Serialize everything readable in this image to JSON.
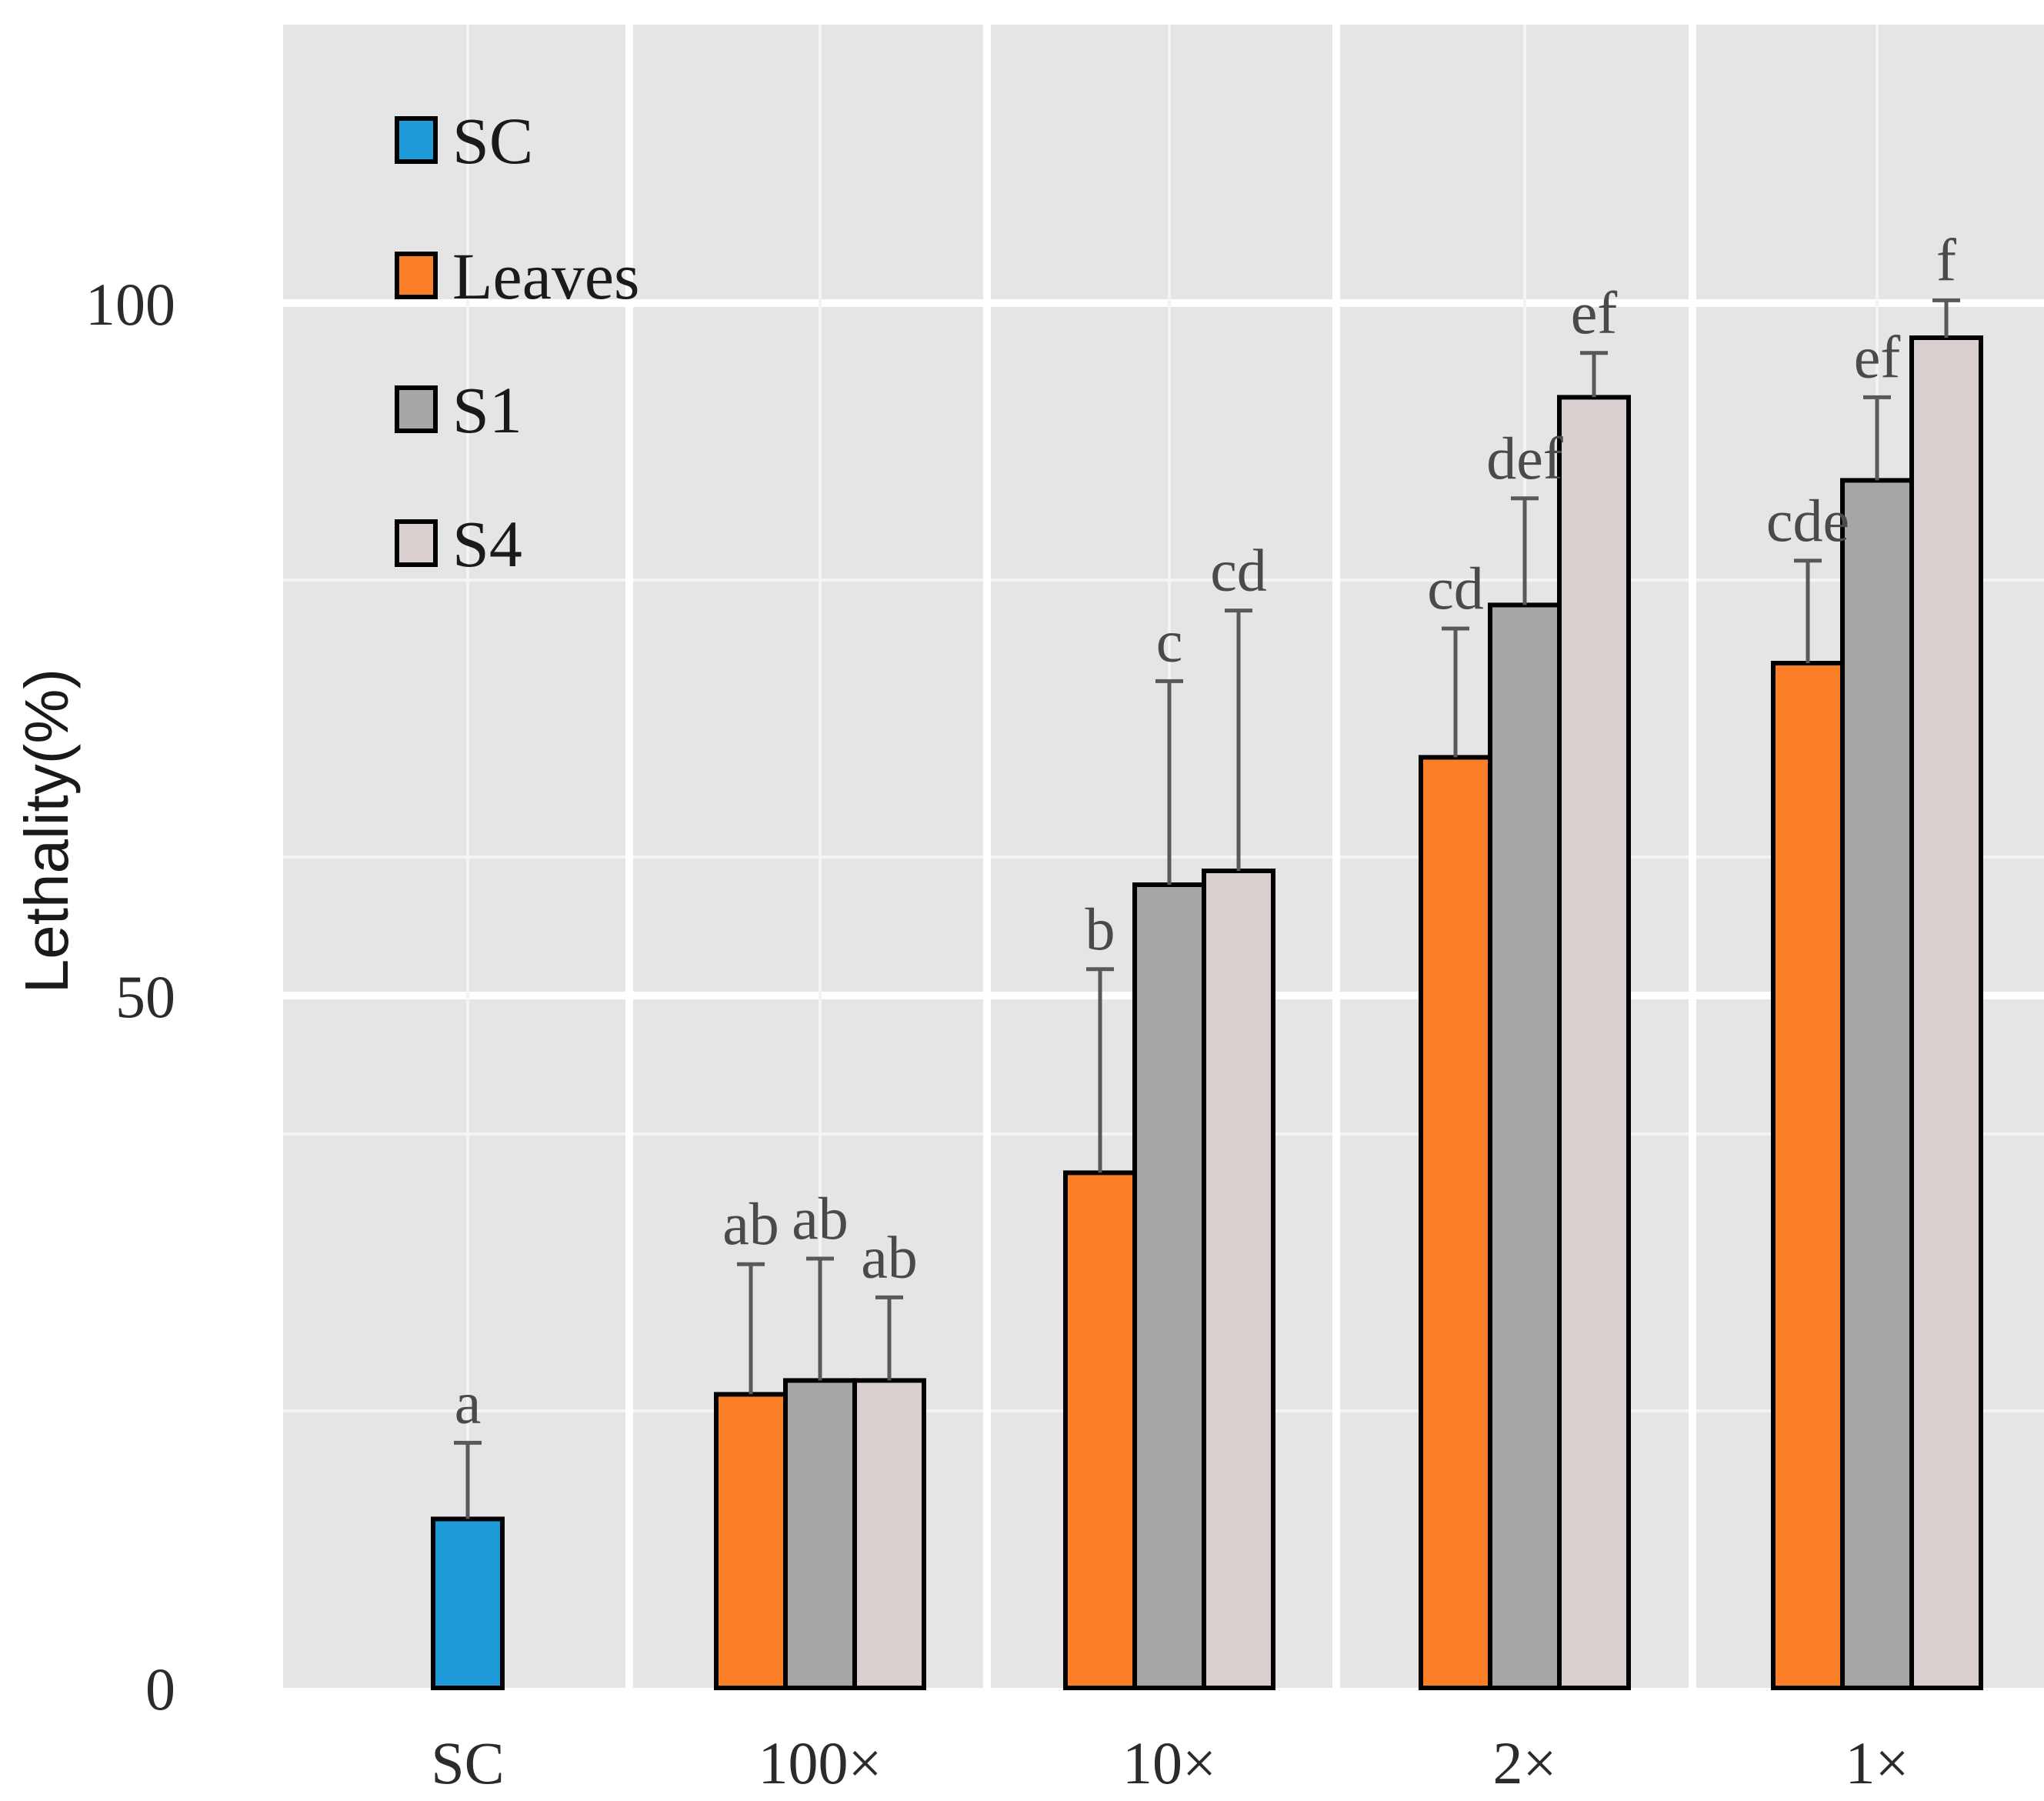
{
  "chart_data": {
    "type": "bar",
    "title": "",
    "xlabel": "",
    "ylabel": "Lethality(%)",
    "ylim": [
      0,
      120
    ],
    "yticks": [
      0,
      50,
      100
    ],
    "grid": true,
    "legend_position": "top-left",
    "categories": [
      "SC",
      "100×",
      "10×",
      "2×",
      "1×"
    ],
    "series": [
      {
        "name": "SC",
        "color": "#1f9ad8",
        "values": [
          12.2,
          null,
          null,
          null,
          null
        ],
        "errors": [
          5.5,
          null,
          null,
          null,
          null
        ],
        "letters": [
          "a",
          null,
          null,
          null,
          null
        ]
      },
      {
        "name": "Leaves",
        "color": "#fb7f27",
        "values": [
          null,
          21.2,
          37.2,
          67.2,
          74.0
        ],
        "errors": [
          null,
          9.4,
          14.7,
          9.3,
          7.4
        ],
        "letters": [
          null,
          "ab",
          "b",
          "cd",
          "cde"
        ]
      },
      {
        "name": "S1",
        "color": "#a6a6a6",
        "values": [
          null,
          22.2,
          58.0,
          78.2,
          87.2
        ],
        "errors": [
          null,
          8.8,
          14.7,
          7.7,
          6.0
        ],
        "letters": [
          null,
          "ab",
          "c",
          "def",
          "ef"
        ]
      },
      {
        "name": "S4",
        "color": "#d9cfcf",
        "values": [
          null,
          22.2,
          59.0,
          93.2,
          97.5
        ],
        "errors": [
          null,
          6.0,
          18.8,
          3.2,
          2.7
        ],
        "letters": [
          null,
          "ab",
          "cd",
          "ef",
          "f"
        ]
      }
    ]
  }
}
